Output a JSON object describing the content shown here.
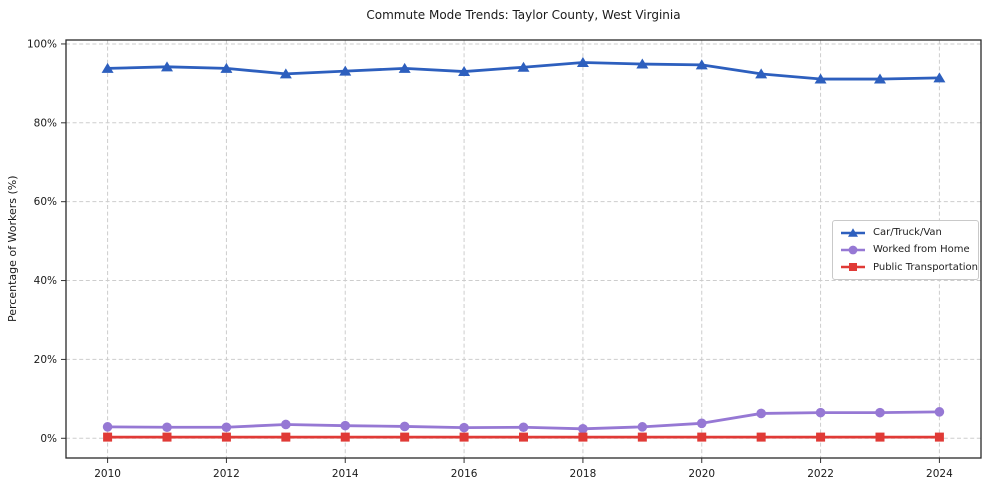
{
  "chart_data": {
    "type": "line",
    "title": "Commute Mode Trends: Taylor County, West Virginia",
    "xlabel": "",
    "ylabel": "Percentage of Workers (%)",
    "x": [
      2010,
      2011,
      2012,
      2013,
      2014,
      2015,
      2016,
      2017,
      2018,
      2019,
      2020,
      2021,
      2022,
      2023,
      2024
    ],
    "x_ticks": [
      2010,
      2012,
      2014,
      2016,
      2018,
      2020,
      2022,
      2024
    ],
    "x_tick_labels": [
      "2010",
      "2012",
      "2014",
      "2016",
      "2018",
      "2020",
      "2022",
      "2024"
    ],
    "y_ticks": [
      0,
      20,
      40,
      60,
      80,
      100
    ],
    "y_tick_labels": [
      "0%",
      "20%",
      "40%",
      "60%",
      "80%",
      "100%"
    ],
    "xlim": [
      2009.3,
      2024.7
    ],
    "ylim": [
      -5,
      101
    ],
    "grid": true,
    "grid_style": "dashed",
    "legend_position": "center-right",
    "series": [
      {
        "name": "Car/Truck/Van",
        "marker": "triangle",
        "color": "#2d5fbe",
        "values": [
          93.8,
          94.2,
          93.8,
          92.4,
          93.1,
          93.8,
          93.0,
          94.1,
          95.3,
          94.9,
          94.7,
          92.4,
          91.1,
          91.1,
          91.4
        ]
      },
      {
        "name": "Worked from Home",
        "marker": "circle",
        "color": "#9678d4",
        "values": [
          2.9,
          2.8,
          2.8,
          3.5,
          3.2,
          3.0,
          2.7,
          2.8,
          2.4,
          2.9,
          3.8,
          6.3,
          6.5,
          6.5,
          6.7
        ]
      },
      {
        "name": "Public Transportation",
        "marker": "square",
        "color": "#e03a36",
        "values": [
          0.3,
          0.3,
          0.3,
          0.3,
          0.3,
          0.3,
          0.3,
          0.3,
          0.3,
          0.3,
          0.3,
          0.3,
          0.3,
          0.3,
          0.3
        ]
      }
    ]
  }
}
